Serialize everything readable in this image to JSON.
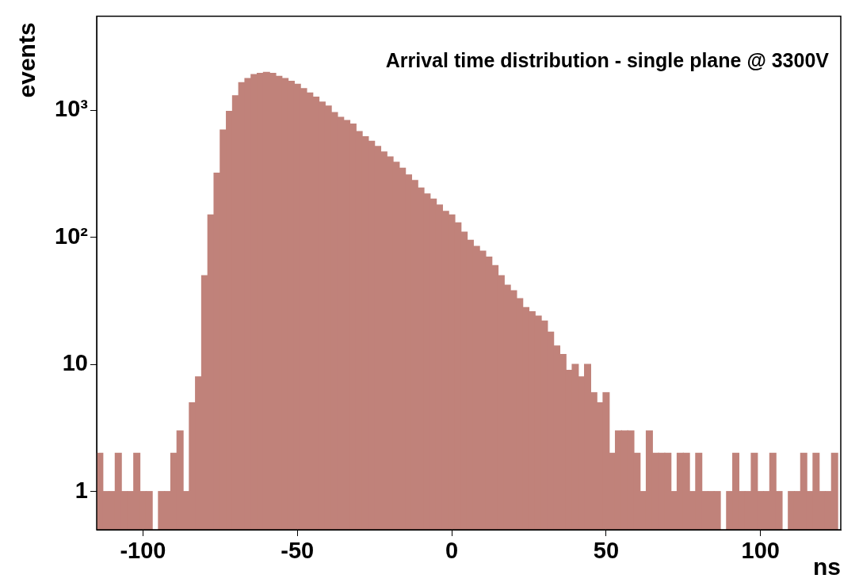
{
  "chart_data": {
    "type": "histogram",
    "title": "Arrival time distribution - single plane @ 3300V",
    "xlabel": "ns",
    "ylabel": "events",
    "bins": [
      -115,
      -113,
      -111,
      -109,
      -107,
      -105,
      -103,
      -101,
      -99,
      -97,
      -95,
      -93,
      -91,
      -89,
      -87,
      -85,
      -83,
      -81,
      -79,
      -77,
      -75,
      -73,
      -71,
      -69,
      -67,
      -65,
      -63,
      -61,
      -59,
      -57,
      -55,
      -53,
      -51,
      -49,
      -47,
      -45,
      -43,
      -41,
      -39,
      -37,
      -35,
      -33,
      -31,
      -29,
      -27,
      -25,
      -23,
      -21,
      -19,
      -17,
      -15,
      -13,
      -11,
      -9,
      -7,
      -5,
      -3,
      -1,
      1,
      3,
      5,
      7,
      9,
      11,
      13,
      15,
      17,
      19,
      21,
      23,
      25,
      27,
      29,
      31,
      33,
      35,
      37,
      39,
      41,
      43,
      45,
      47,
      49,
      51,
      53,
      55,
      57,
      59,
      61,
      63,
      65,
      67,
      69,
      71,
      73,
      75,
      77,
      79,
      81,
      83,
      85,
      87,
      89,
      91,
      93,
      95,
      97,
      99,
      101,
      103,
      105,
      107,
      109,
      111,
      113,
      115,
      117,
      119,
      121,
      123,
      125
    ],
    "values": [
      2,
      1,
      1,
      2,
      1,
      1,
      2,
      1,
      1,
      null,
      1,
      1,
      2,
      3,
      1,
      5,
      8,
      50,
      150,
      320,
      700,
      980,
      1300,
      1650,
      1780,
      1910,
      1950,
      1990,
      1950,
      1850,
      1780,
      1690,
      1600,
      1480,
      1370,
      1270,
      1160,
      1080,
      960,
      880,
      830,
      780,
      680,
      620,
      570,
      520,
      470,
      430,
      390,
      350,
      310,
      280,
      245,
      220,
      200,
      180,
      160,
      150,
      130,
      110,
      95,
      85,
      78,
      70,
      60,
      50,
      42,
      38,
      33,
      28,
      26,
      24,
      22,
      18,
      14,
      12,
      9,
      10,
      8,
      10,
      6,
      5,
      6,
      2,
      3,
      3,
      3,
      2,
      1,
      3,
      2,
      2,
      2,
      1,
      2,
      2,
      1,
      2,
      1,
      1,
      1,
      null,
      1,
      2,
      1,
      1,
      2,
      1,
      1,
      2,
      1,
      null,
      1,
      1,
      2,
      1,
      2,
      1,
      1,
      2
    ],
    "color": "#c0827a",
    "log": "y",
    "xlim": [
      -115,
      126
    ],
    "ylim": [
      0.5,
      5500
    ],
    "xticks": [
      -100,
      -50,
      0,
      50,
      100
    ],
    "yticks": [
      1,
      10,
      {
        "value": 100,
        "label": "10²"
      },
      {
        "value": 1000,
        "label": "10³"
      }
    ],
    "grid": false,
    "legend": false
  }
}
